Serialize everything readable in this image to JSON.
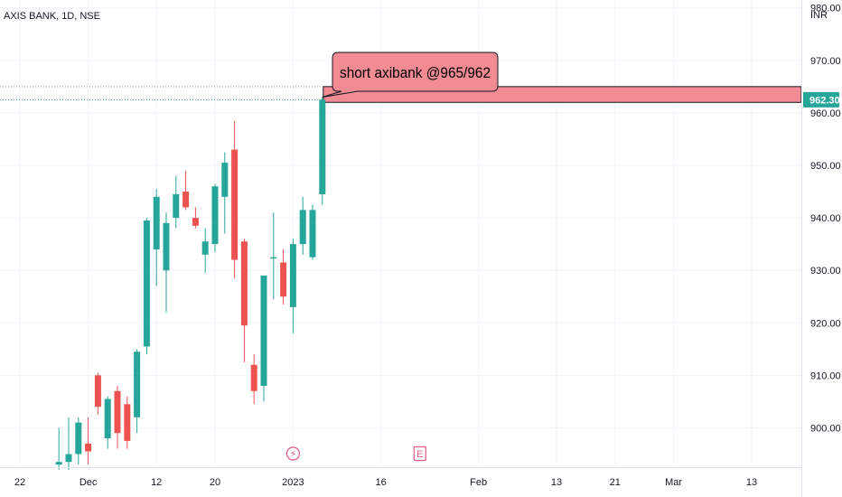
{
  "header": {
    "symbol_title": "AXIS BANK, 1D, NSE",
    "currency": "INR"
  },
  "callout": {
    "text": "short axibank @965/962"
  },
  "price_tag": {
    "value": "962.30",
    "color": "#26a69a"
  },
  "markers": {
    "dividend_icon": "⚡",
    "earnings_icon": "E"
  },
  "colors": {
    "up": "#26a69a",
    "down": "#ef5350",
    "zone_fill": "#f28b93",
    "callout_fill": "#f28b93",
    "marker": "#e05a8a"
  },
  "chart_data": {
    "type": "candlestick",
    "ylim": [
      892.5,
      981.5
    ],
    "yticks": [
      900,
      910,
      920,
      930,
      940,
      950,
      960,
      970,
      980
    ],
    "ytick_labels": [
      "900.00",
      "910.00",
      "920.00",
      "930.00",
      "940.00",
      "950.00",
      "960.00",
      "970.00",
      "980.00"
    ],
    "xticks": [
      {
        "label": "22",
        "t": 0
      },
      {
        "label": "Dec",
        "t": 7
      },
      {
        "label": "12",
        "t": 14
      },
      {
        "label": "20",
        "t": 20
      },
      {
        "label": "2023",
        "t": 28
      },
      {
        "label": "16",
        "t": 37
      },
      {
        "label": "Feb",
        "t": 47
      },
      {
        "label": "13",
        "t": 55
      },
      {
        "label": "21",
        "t": 61
      },
      {
        "label": "Mar",
        "t": 67
      },
      {
        "label": "13",
        "t": 75
      }
    ],
    "candles": [
      {
        "t": 4,
        "o": 893.0,
        "h": 900.0,
        "l": 892.0,
        "c": 893.5
      },
      {
        "t": 5,
        "o": 893.5,
        "h": 902.0,
        "l": 892.0,
        "c": 895.0
      },
      {
        "t": 6,
        "o": 895.0,
        "h": 902.0,
        "l": 893.0,
        "c": 901.0
      },
      {
        "t": 7,
        "o": 897.0,
        "h": 902.0,
        "l": 893.0,
        "c": 895.5
      },
      {
        "t": 8,
        "o": 910.0,
        "h": 910.5,
        "l": 902.5,
        "c": 904.0
      },
      {
        "t": 9,
        "o": 898.0,
        "h": 906.0,
        "l": 896.0,
        "c": 905.5
      },
      {
        "t": 10,
        "o": 907.0,
        "h": 908.0,
        "l": 896.0,
        "c": 899.0
      },
      {
        "t": 11,
        "o": 904.5,
        "h": 906.0,
        "l": 896.0,
        "c": 897.5
      },
      {
        "t": 12,
        "o": 902.0,
        "h": 915.0,
        "l": 899.0,
        "c": 914.5
      },
      {
        "t": 13,
        "o": 915.5,
        "h": 940.0,
        "l": 914.0,
        "c": 939.5
      },
      {
        "t": 14,
        "o": 934.0,
        "h": 945.5,
        "l": 927.0,
        "c": 944.0
      },
      {
        "t": 15,
        "o": 930.0,
        "h": 941.0,
        "l": 922.0,
        "c": 939.0
      },
      {
        "t": 16,
        "o": 940.0,
        "h": 948.0,
        "l": 938.0,
        "c": 944.5
      },
      {
        "t": 17,
        "o": 945.0,
        "h": 949.0,
        "l": 941.5,
        "c": 942.0
      },
      {
        "t": 18,
        "o": 940.0,
        "h": 942.0,
        "l": 938.0,
        "c": 938.5
      },
      {
        "t": 19,
        "o": 933.0,
        "h": 938.0,
        "l": 929.5,
        "c": 935.5
      },
      {
        "t": 20,
        "o": 935.0,
        "h": 946.5,
        "l": 933.5,
        "c": 946.0
      },
      {
        "t": 21,
        "o": 944.0,
        "h": 952.5,
        "l": 937.0,
        "c": 950.5
      },
      {
        "t": 22,
        "o": 953.0,
        "h": 958.5,
        "l": 928.5,
        "c": 932.0
      },
      {
        "t": 23,
        "o": 935.5,
        "h": 936.0,
        "l": 912.5,
        "c": 919.5
      },
      {
        "t": 24,
        "o": 912.0,
        "h": 914.0,
        "l": 904.5,
        "c": 907.0
      },
      {
        "t": 25,
        "o": 908.0,
        "h": 929.0,
        "l": 905.0,
        "c": 929.0
      },
      {
        "t": 26,
        "o": 932.5,
        "h": 941.0,
        "l": 924.5,
        "c": 932.5
      },
      {
        "t": 27,
        "o": 931.5,
        "h": 934.0,
        "l": 923.5,
        "c": 925.0
      },
      {
        "t": 28,
        "o": 923.0,
        "h": 936.0,
        "l": 918.0,
        "c": 935.0
      },
      {
        "t": 29,
        "o": 935.0,
        "h": 944.0,
        "l": 933.0,
        "c": 941.5
      },
      {
        "t": 30,
        "o": 932.5,
        "h": 942.5,
        "l": 932.0,
        "c": 941.5
      },
      {
        "t": 31,
        "o": 944.5,
        "h": 963.0,
        "l": 942.5,
        "c": 962.5
      }
    ],
    "zone": {
      "t_start": 31,
      "top": 965,
      "bottom": 962
    },
    "marker_t": {
      "dividend": 28,
      "earnings": 41
    }
  }
}
